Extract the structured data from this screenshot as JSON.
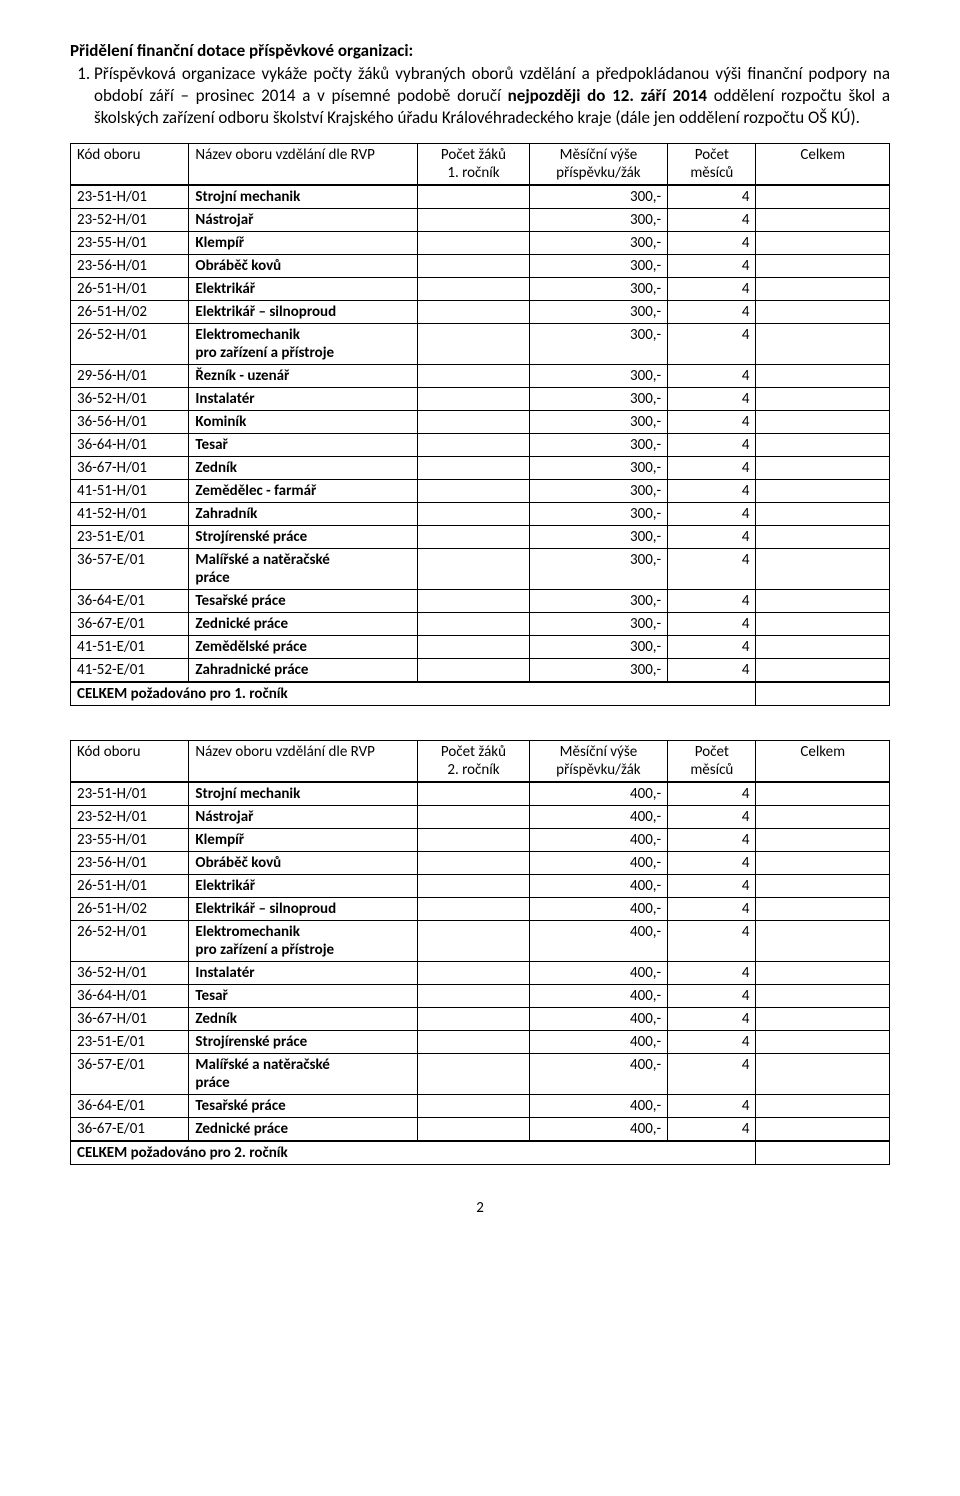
{
  "heading": "Přidělení finanční dotace příspěvkové organizaci:",
  "paragraph_before_bold": "Příspěvková organizace vykáže počty žáků vybraných oborů vzdělání a předpokládanou výši finanční podpory na období září – prosinec 2014 a v písemné podobě doručí ",
  "paragraph_bold": "nejpozději do 12. září 2014",
  "paragraph_after_bold": " oddělení rozpočtu škol a školských zařízení odboru školství Krajského úřadu Královéhradeckého kraje (dále jen oddělení rozpočtu OŠ KÚ).",
  "table1": {
    "hdr": {
      "code": "Kód oboru",
      "name": "Název oboru vzdělání dle RVP",
      "count": "Počet žáků\n1. ročník",
      "month": "Měsíční výše\npříspěvku/žák",
      "mcnt": "Počet\nměsíců",
      "total": "Celkem"
    },
    "rows": [
      {
        "code": "23-51-H/01",
        "name": "Strojní mechanik",
        "month": "300,-",
        "mcnt": "4"
      },
      {
        "code": "23-52-H/01",
        "name": "Nástrojař",
        "month": "300,-",
        "mcnt": "4"
      },
      {
        "code": "23-55-H/01",
        "name": "Klempíř",
        "month": "300,-",
        "mcnt": "4"
      },
      {
        "code": "23-56-H/01",
        "name": "Obráběč kovů",
        "month": "300,-",
        "mcnt": "4"
      },
      {
        "code": "26-51-H/01",
        "name": "Elektrikář",
        "month": "300,-",
        "mcnt": "4"
      },
      {
        "code": "26-51-H/02",
        "name": "Elektrikář – silnoproud",
        "month": "300,-",
        "mcnt": "4"
      },
      {
        "code": "26-52-H/01",
        "name": "Elektromechanik\npro zařízení a přístroje",
        "month": "300,-",
        "mcnt": "4"
      },
      {
        "code": "29-56-H/01",
        "name": "Řezník - uzenář",
        "month": "300,-",
        "mcnt": "4"
      },
      {
        "code": "36-52-H/01",
        "name": "Instalatér",
        "month": "300,-",
        "mcnt": "4"
      },
      {
        "code": "36-56-H/01",
        "name": "Kominík",
        "month": "300,-",
        "mcnt": "4"
      },
      {
        "code": "36-64-H/01",
        "name": "Tesař",
        "month": "300,-",
        "mcnt": "4"
      },
      {
        "code": "36-67-H/01",
        "name": "Zedník",
        "month": "300,-",
        "mcnt": "4"
      },
      {
        "code": "41-51-H/01",
        "name": "Zemědělec - farmář",
        "month": "300,-",
        "mcnt": "4"
      },
      {
        "code": "41-52-H/01",
        "name": "Zahradník",
        "month": "300,-",
        "mcnt": "4"
      },
      {
        "code": "23-51-E/01",
        "name": "Strojírenské práce",
        "month": "300,-",
        "mcnt": "4"
      },
      {
        "code": "36-57-E/01",
        "name": "Malířské a natěračské\npráce",
        "month": "300,-",
        "mcnt": "4"
      },
      {
        "code": "36-64-E/01",
        "name": "Tesařské práce",
        "month": "300,-",
        "mcnt": "4"
      },
      {
        "code": "36-67-E/01",
        "name": "Zednické práce",
        "month": "300,-",
        "mcnt": "4"
      },
      {
        "code": "41-51-E/01",
        "name": "Zemědělské práce",
        "month": "300,-",
        "mcnt": "4"
      },
      {
        "code": "41-52-E/01",
        "name": "Zahradnické práce",
        "month": "300,-",
        "mcnt": "4"
      }
    ],
    "total_label": "CELKEM požadováno pro 1. ročník"
  },
  "table2": {
    "hdr": {
      "code": "Kód oboru",
      "name": "Název oboru vzdělání dle RVP",
      "count": "Počet žáků\n2. ročník",
      "month": "Měsíční výše\npříspěvku/žák",
      "mcnt": "Počet\nměsíců",
      "total": "Celkem"
    },
    "rows": [
      {
        "code": "23-51-H/01",
        "name": "Strojní mechanik",
        "month": "400,-",
        "mcnt": "4"
      },
      {
        "code": "23-52-H/01",
        "name": "Nástrojař",
        "month": "400,-",
        "mcnt": "4"
      },
      {
        "code": "23-55-H/01",
        "name": "Klempíř",
        "month": "400,-",
        "mcnt": "4"
      },
      {
        "code": "23-56-H/01",
        "name": "Obráběč kovů",
        "month": "400,-",
        "mcnt": "4"
      },
      {
        "code": "26-51-H/01",
        "name": "Elektrikář",
        "month": "400,-",
        "mcnt": "4"
      },
      {
        "code": "26-51-H/02",
        "name": "Elektrikář – silnoproud",
        "month": "400,-",
        "mcnt": "4"
      },
      {
        "code": "26-52-H/01",
        "name": "Elektromechanik\npro zařízení a přístroje",
        "month": "400,-",
        "mcnt": "4"
      },
      {
        "code": "36-52-H/01",
        "name": "Instalatér",
        "month": "400,-",
        "mcnt": "4"
      },
      {
        "code": "36-64-H/01",
        "name": "Tesař",
        "month": "400,-",
        "mcnt": "4"
      },
      {
        "code": "36-67-H/01",
        "name": "Zedník",
        "month": "400,-",
        "mcnt": "4"
      },
      {
        "code": "23-51-E/01",
        "name": "Strojírenské práce",
        "month": "400,-",
        "mcnt": "4"
      },
      {
        "code": "36-57-E/01",
        "name": "Malířské a natěračské\npráce",
        "month": "400,-",
        "mcnt": "4"
      },
      {
        "code": "36-64-E/01",
        "name": "Tesařské práce",
        "month": "400,-",
        "mcnt": "4"
      },
      {
        "code": "36-67-E/01",
        "name": "Zednické práce",
        "month": "400,-",
        "mcnt": "4"
      }
    ],
    "total_label": "CELKEM požadováno pro 2. ročník"
  },
  "page_number": "2"
}
